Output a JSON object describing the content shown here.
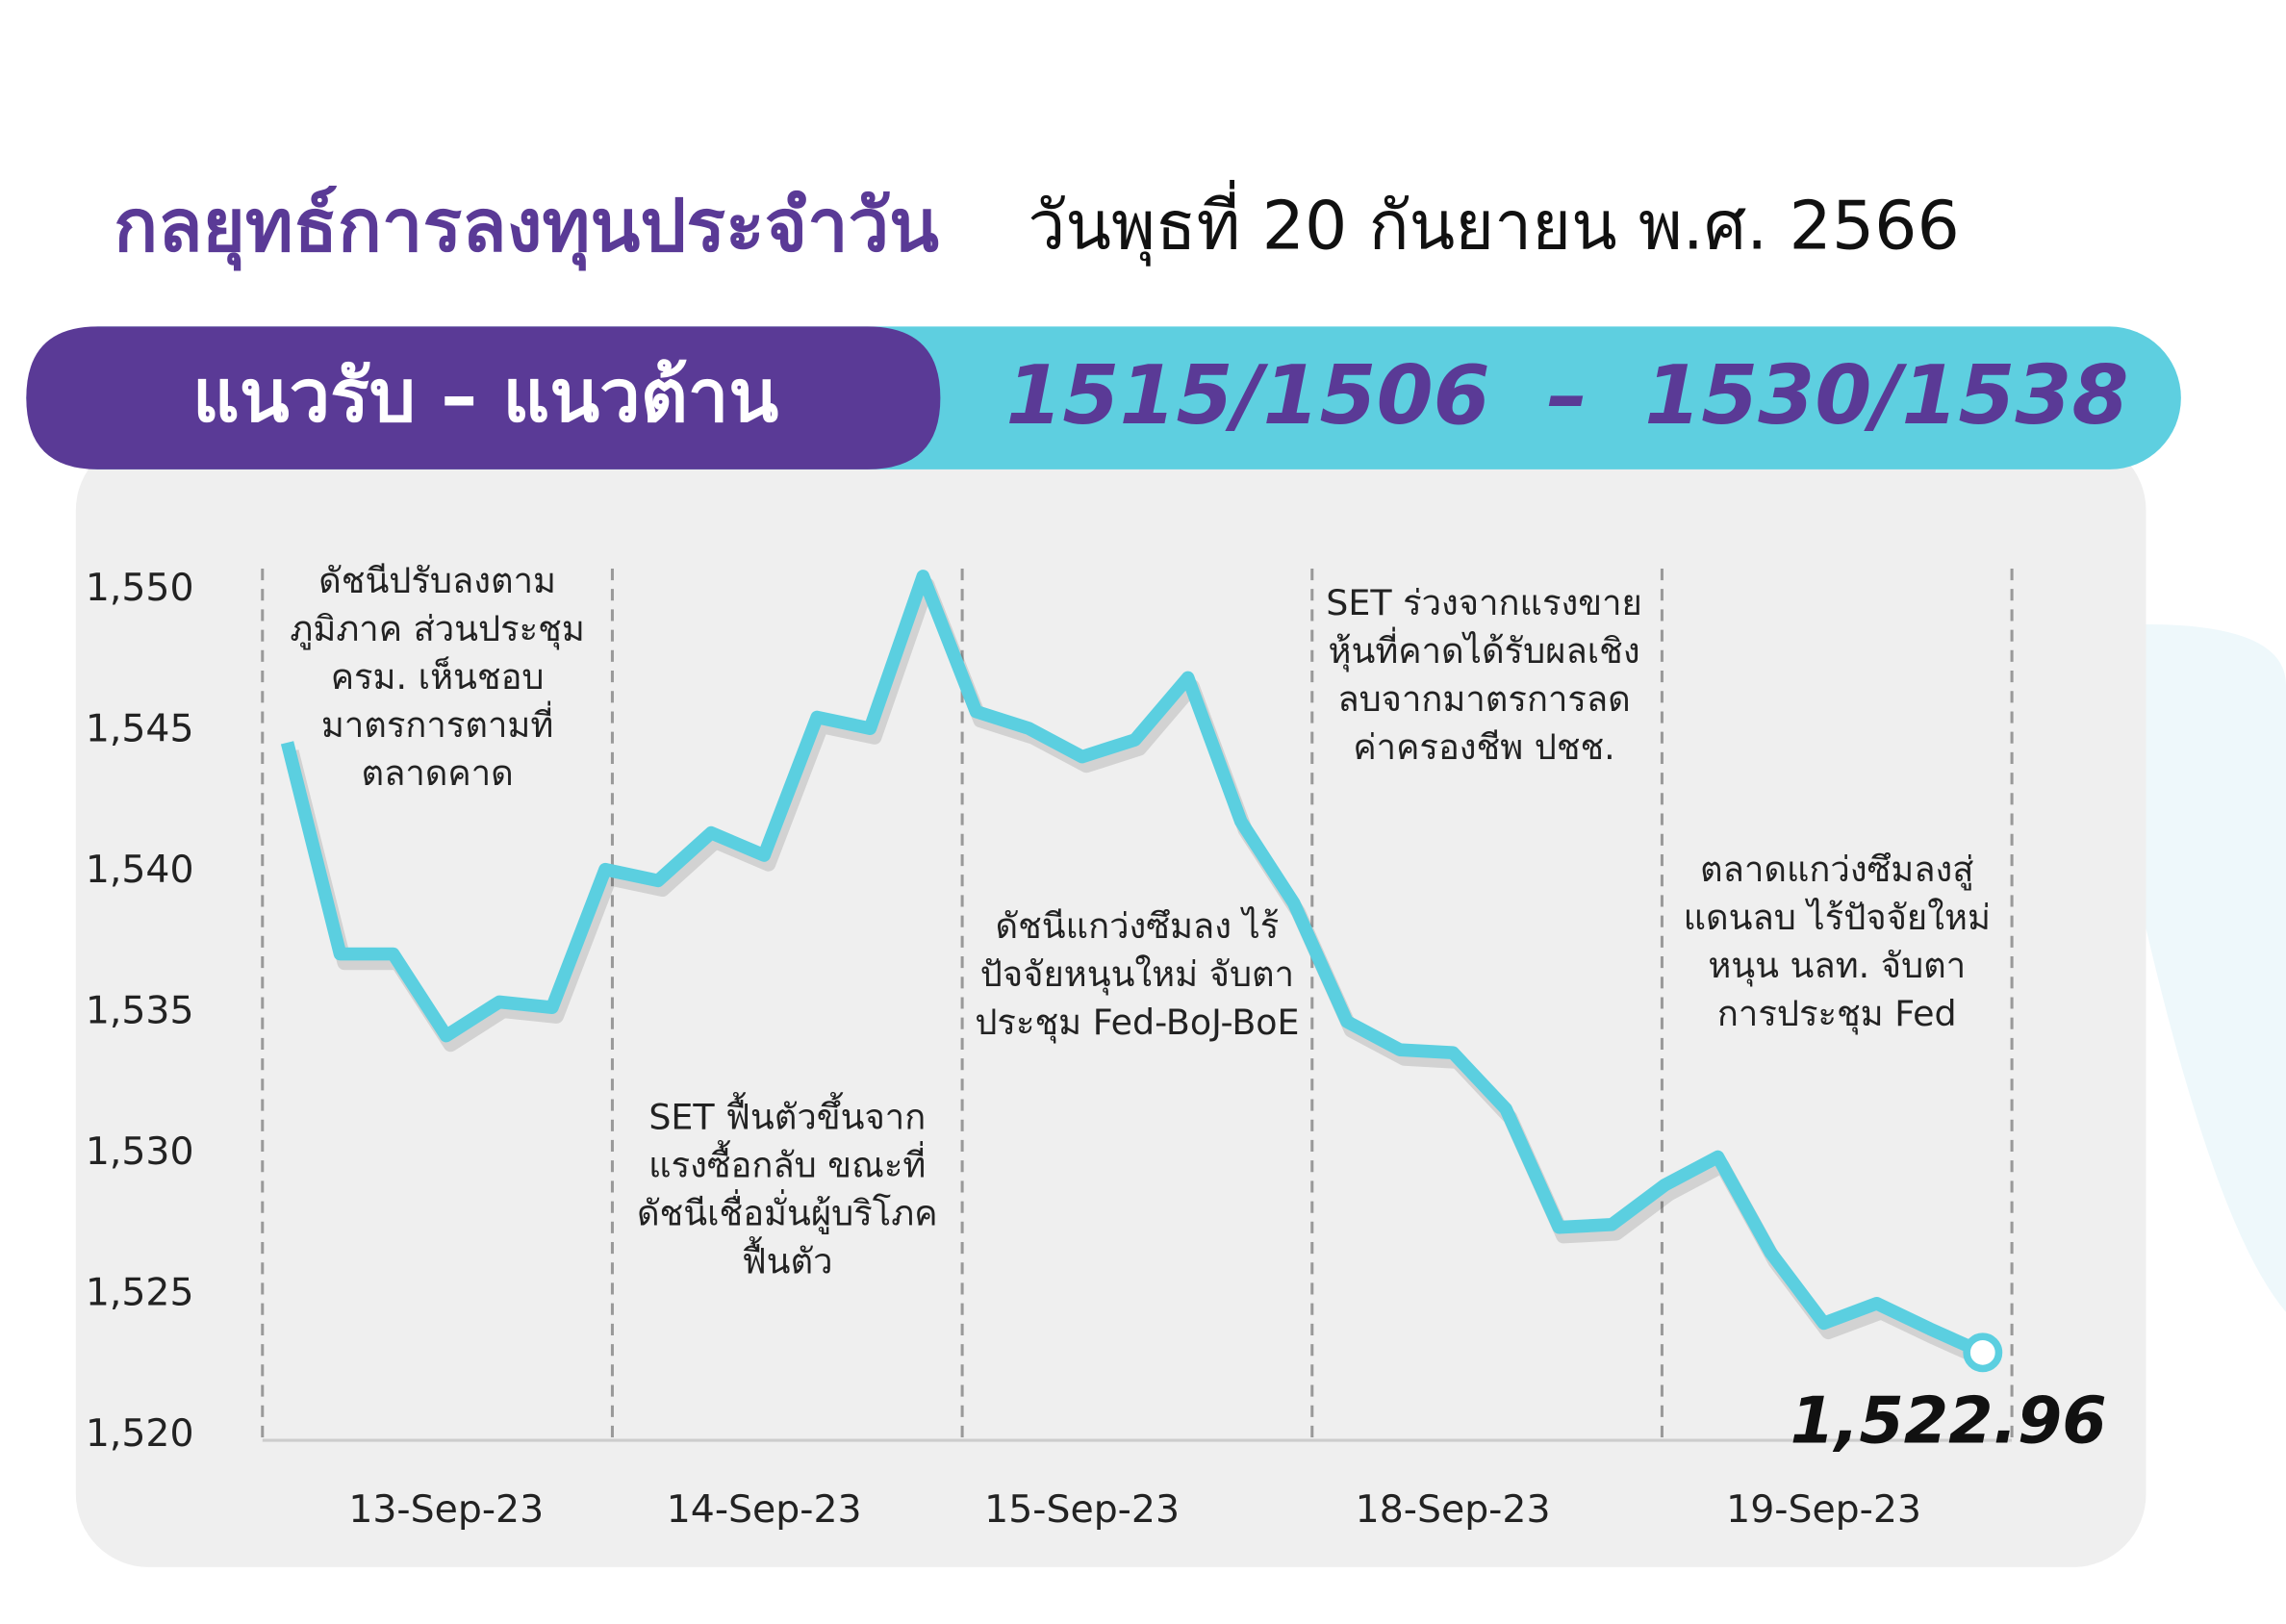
{
  "header": {
    "title": "กลยุทธ์การลงทุนประจำวัน",
    "date": "วันพุธที่ 20 กันยายน พ.ศ. 2566",
    "band_label": "แนวรับ – แนวต้าน",
    "band_values": "1515/1506  –  1530/1538"
  },
  "chart_data": {
    "type": "line",
    "categories": [
      null,
      null,
      null,
      "13-Sep-23",
      null,
      null,
      null,
      null,
      null,
      "14-Sep-23",
      null,
      null,
      null,
      null,
      null,
      "15-Sep-23",
      null,
      null,
      null,
      null,
      null,
      null,
      "18-Sep-23",
      null,
      null,
      null,
      null,
      null,
      null,
      "19-Sep-23",
      null,
      null,
      null
    ],
    "series": [
      {
        "name": "SET",
        "color": "#5bcfe0",
        "values": [
          1544.6,
          1537.1,
          1537.1,
          1534.2,
          1535.4,
          1535.2,
          1540.1,
          1539.7,
          1541.4,
          1540.6,
          1545.5,
          1545.1,
          1550.5,
          1545.7,
          1545.1,
          1544.1,
          1544.7,
          1546.9,
          1541.8,
          1538.9,
          1534.7,
          1533.7,
          1533.6,
          1531.6,
          1527.4,
          1527.5,
          1528.9,
          1529.9,
          1526.5,
          1524.0,
          1524.7,
          1523.8,
          1522.96
        ],
        "value_labels": [
          null,
          null,
          null,
          null,
          null,
          null,
          null,
          null,
          null,
          null,
          null,
          null,
          null,
          null,
          null,
          null,
          null,
          null,
          null,
          null,
          null,
          null,
          null,
          null,
          null,
          null,
          null,
          null,
          null,
          null,
          null,
          null,
          "1,522.96"
        ]
      }
    ],
    "ylim": [
      1520,
      1550
    ],
    "yticks": [
      {
        "value": 1520,
        "label": "1,520"
      },
      {
        "value": 1525,
        "label": "1,525"
      },
      {
        "value": 1530,
        "label": "1,530"
      },
      {
        "value": 1535,
        "label": "1,535"
      },
      {
        "value": 1540,
        "label": "1,540"
      },
      {
        "value": 1545,
        "label": "1,545"
      },
      {
        "value": 1550,
        "label": "1,550"
      }
    ],
    "annotations": [
      [
        "ดัชนีปรับลงตาม",
        "ภูมิภาค ส่วนประชุม",
        "ครม. เห็นชอบ",
        "มาตรการตามที่",
        "ตลาดคาด"
      ],
      [
        "SET ฟื้นตัวขึ้นจาก",
        "แรงซื้อกลับ ขณะที่",
        "ดัชนีเชื่อมั่นผู้บริโภค",
        "ฟื้นตัว"
      ],
      [
        "ดัชนีแกว่งซึมลง ไร้",
        "ปัจจัยหนุนใหม่ จับตา",
        "ประชุม Fed-BoJ-BoE"
      ],
      [
        "SET ร่วงจากแรงขาย",
        "หุ้นที่คาดได้รับผลเชิง",
        "ลบจากมาตรการลด",
        "ค่าครองชีพ ปชช."
      ],
      [
        "ตลาดแกว่งซึมลงสู่",
        "แดนลบ ไร้ปัจจัยใหม่",
        "หนุน นลท. จับตา",
        "การประชุม Fed"
      ]
    ]
  }
}
